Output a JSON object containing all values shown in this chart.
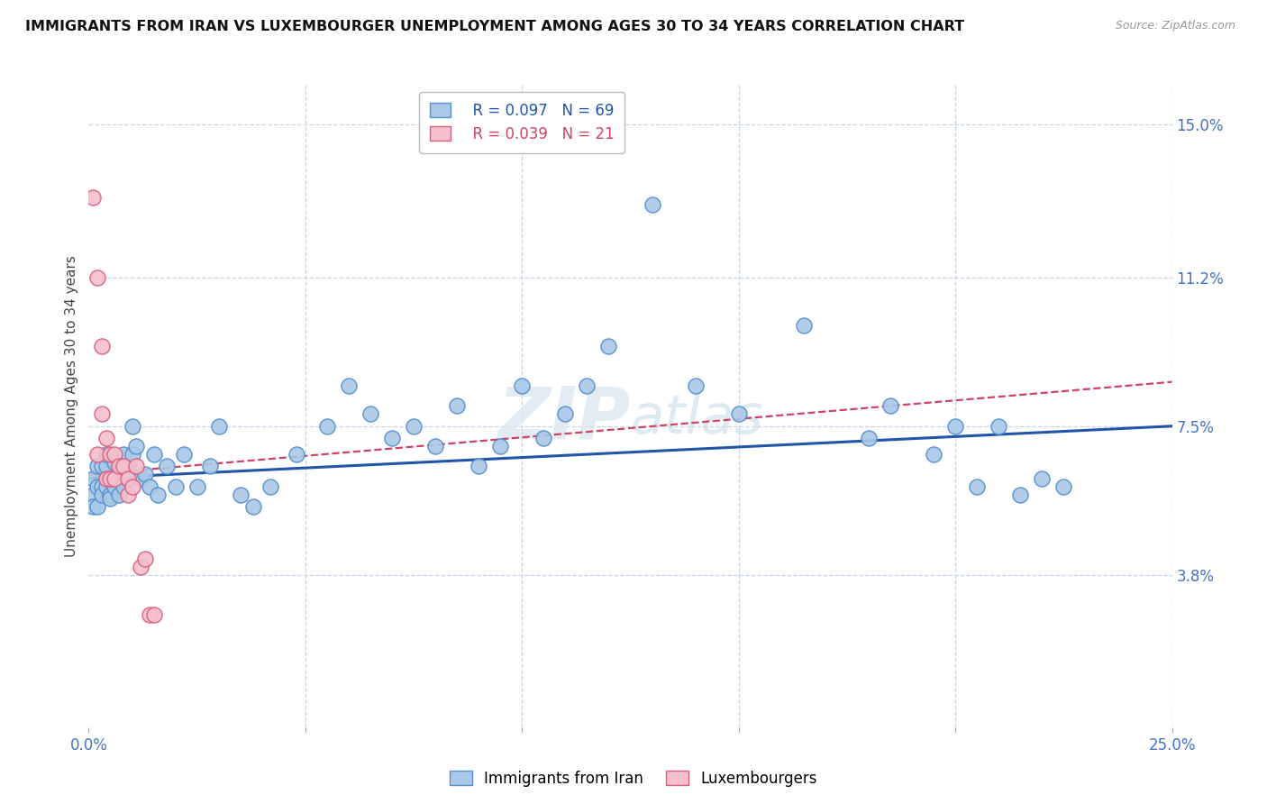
{
  "title": "IMMIGRANTS FROM IRAN VS LUXEMBOURGER UNEMPLOYMENT AMONG AGES 30 TO 34 YEARS CORRELATION CHART",
  "source": "Source: ZipAtlas.com",
  "ylabel": "Unemployment Among Ages 30 to 34 years",
  "x_min": 0.0,
  "x_max": 0.25,
  "y_min": 0.0,
  "y_max": 0.16,
  "right_ytick_labels": [
    "3.8%",
    "7.5%",
    "11.2%",
    "15.0%"
  ],
  "right_ytick_values": [
    0.038,
    0.075,
    0.112,
    0.15
  ],
  "x_tick_values": [
    0.0,
    0.05,
    0.1,
    0.15,
    0.2,
    0.25
  ],
  "x_tick_labels": [
    "0.0%",
    "",
    "",
    "",
    "",
    "25.0%"
  ],
  "legend_r1": "R = 0.097",
  "legend_n1": "N = 69",
  "legend_r2": "R = 0.039",
  "legend_n2": "N = 21",
  "series1_color": "#aac8e8",
  "series1_edge_color": "#5590cc",
  "series2_color": "#f5bfcc",
  "series2_edge_color": "#d96080",
  "trend1_color": "#2255aa",
  "trend2_color": "#cc4466",
  "watermark": "ZIPatlas",
  "background_color": "#ffffff",
  "grid_color": "#c8d4e8",
  "series1_x": [
    0.001,
    0.001,
    0.001,
    0.002,
    0.002,
    0.002,
    0.003,
    0.003,
    0.003,
    0.004,
    0.004,
    0.004,
    0.005,
    0.005,
    0.005,
    0.006,
    0.006,
    0.006,
    0.007,
    0.007,
    0.008,
    0.008,
    0.009,
    0.009,
    0.01,
    0.01,
    0.011,
    0.012,
    0.013,
    0.014,
    0.015,
    0.016,
    0.018,
    0.02,
    0.022,
    0.025,
    0.028,
    0.03,
    0.035,
    0.038,
    0.042,
    0.048,
    0.055,
    0.06,
    0.065,
    0.07,
    0.075,
    0.08,
    0.085,
    0.09,
    0.095,
    0.1,
    0.105,
    0.11,
    0.115,
    0.12,
    0.13,
    0.14,
    0.15,
    0.165,
    0.18,
    0.185,
    0.195,
    0.2,
    0.205,
    0.21,
    0.215,
    0.22,
    0.225
  ],
  "series1_y": [
    0.062,
    0.058,
    0.055,
    0.065,
    0.06,
    0.055,
    0.06,
    0.065,
    0.058,
    0.06,
    0.065,
    0.068,
    0.058,
    0.062,
    0.057,
    0.062,
    0.066,
    0.06,
    0.063,
    0.058,
    0.068,
    0.06,
    0.065,
    0.062,
    0.068,
    0.075,
    0.07,
    0.062,
    0.063,
    0.06,
    0.068,
    0.058,
    0.065,
    0.06,
    0.068,
    0.06,
    0.065,
    0.075,
    0.058,
    0.055,
    0.06,
    0.068,
    0.075,
    0.085,
    0.078,
    0.072,
    0.075,
    0.07,
    0.08,
    0.065,
    0.07,
    0.085,
    0.072,
    0.078,
    0.085,
    0.095,
    0.13,
    0.085,
    0.078,
    0.1,
    0.072,
    0.08,
    0.068,
    0.075,
    0.06,
    0.075,
    0.058,
    0.062,
    0.06
  ],
  "series2_x": [
    0.001,
    0.002,
    0.002,
    0.003,
    0.003,
    0.004,
    0.004,
    0.005,
    0.005,
    0.006,
    0.006,
    0.007,
    0.008,
    0.009,
    0.009,
    0.01,
    0.011,
    0.012,
    0.013,
    0.014,
    0.015
  ],
  "series2_y": [
    0.132,
    0.068,
    0.112,
    0.078,
    0.095,
    0.072,
    0.062,
    0.068,
    0.062,
    0.068,
    0.062,
    0.065,
    0.065,
    0.058,
    0.062,
    0.06,
    0.065,
    0.04,
    0.042,
    0.028,
    0.028
  ],
  "trend1_x0": 0.0,
  "trend1_x1": 0.25,
  "trend1_y0": 0.062,
  "trend1_y1": 0.075,
  "trend2_x0": 0.0,
  "trend2_x1": 0.25,
  "trend2_y0": 0.063,
  "trend2_y1": 0.086
}
